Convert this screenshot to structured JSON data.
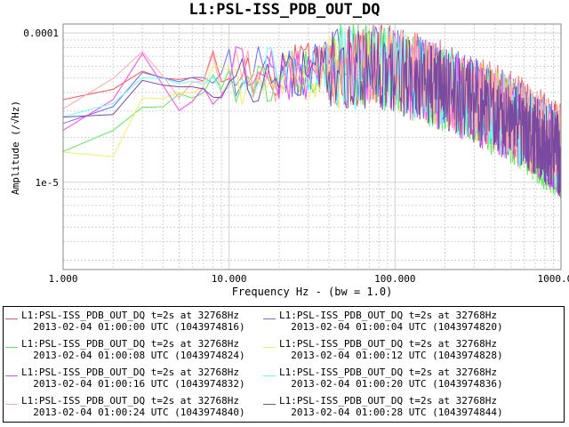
{
  "chart_data": {
    "type": "line",
    "title": "L1:PSL-ISS_PDB_OUT_DQ",
    "xlabel": "Frequency Hz - (bw = 1.0)",
    "ylabel": "Amplitude  (/√Hz)",
    "x_scale": "log",
    "y_scale": "log",
    "xlim": [
      1,
      1000
    ],
    "ylim": [
      2.6e-06,
      0.000115
    ],
    "x_ticks": [
      1,
      10,
      100,
      1000
    ],
    "x_tick_labels": [
      "1.000",
      "10.000",
      "100.000",
      "1000.000"
    ],
    "y_ticks": [
      1e-05,
      0.0001
    ],
    "y_tick_labels": [
      "1e-5",
      "0.0001"
    ],
    "grid": true,
    "legend_position": "bottom",
    "series": [
      {
        "name": "L1:PSL-ISS_PDB_OUT_DQ t=2s at 32768Hz",
        "label_line2": "2013-02-04 01:00:00 UTC (1043974816)",
        "color": "#ff5555",
        "x": [
          1,
          2,
          3,
          5,
          10,
          20,
          50,
          100,
          200,
          500,
          1000
        ],
        "values": [
          3.3e-05,
          4.2e-05,
          5.5e-05,
          4.8e-05,
          5.2e-05,
          5.6e-05,
          6.2e-05,
          6e-05,
          4.6e-05,
          3e-05,
          1.8e-05
        ]
      },
      {
        "name": "L1:PSL-ISS_PDB_OUT_DQ t=2s at 32768Hz",
        "label_line2": "2013-02-04 01:00:04 UTC (1043974820)",
        "color": "#6b6bff",
        "x": [
          1,
          2,
          3,
          5,
          10,
          20,
          50,
          100,
          200,
          500,
          1000
        ],
        "values": [
          2.6e-05,
          3.5e-05,
          5.6e-05,
          4.5e-05,
          5.8e-05,
          5.4e-05,
          6e-05,
          5.8e-05,
          4.4e-05,
          2.8e-05,
          1.6e-05
        ]
      },
      {
        "name": "L1:PSL-ISS_PDB_OUT_DQ t=2s at 32768Hz",
        "label_line2": "2013-02-04 01:00:08 UTC (1043974824)",
        "color": "#55ee55",
        "x": [
          1,
          2,
          3,
          5,
          10,
          20,
          50,
          100,
          200,
          500,
          1000
        ],
        "values": [
          1.6e-05,
          2.2e-05,
          3.4e-05,
          3.6e-05,
          5e-05,
          5.2e-05,
          6.4e-05,
          5.5e-05,
          4e-05,
          2.5e-05,
          1.4e-05
        ]
      },
      {
        "name": "L1:PSL-ISS_PDB_OUT_DQ t=2s at 32768Hz",
        "label_line2": "2013-02-04 01:00:12 UTC (1043974828)",
        "color": "#f0f060",
        "x": [
          1,
          2,
          3,
          5,
          10,
          20,
          50,
          100,
          200,
          500,
          1000
        ],
        "values": [
          1.5e-05,
          1.6e-05,
          3.4e-05,
          4.2e-05,
          4.6e-05,
          5e-05,
          5.8e-05,
          5.6e-05,
          4.2e-05,
          2.7e-05,
          1.5e-05
        ]
      },
      {
        "name": "L1:PSL-ISS_PDB_OUT_DQ t=2s at 32768Hz",
        "label_line2": "2013-02-04 01:00:16 UTC (1043974832)",
        "color": "#ff44ff",
        "x": [
          1,
          2,
          3,
          5,
          10,
          20,
          50,
          100,
          200,
          500,
          1000
        ],
        "values": [
          2.4e-05,
          3.5e-05,
          7e-05,
          3e-05,
          5.4e-05,
          5.2e-05,
          5.8e-05,
          5.4e-05,
          4.1e-05,
          2.6e-05,
          1.5e-05
        ]
      },
      {
        "name": "L1:PSL-ISS_PDB_OUT_DQ t=2s at 32768Hz",
        "label_line2": "2013-02-04 01:00:20 UTC (1043974836)",
        "color": "#66ffff",
        "x": [
          1,
          2,
          3,
          5,
          10,
          20,
          50,
          100,
          200,
          500,
          1000
        ],
        "values": [
          2.8e-05,
          3.6e-05,
          5e-05,
          4.4e-05,
          5.5e-05,
          5.3e-05,
          6e-05,
          5.6e-05,
          4.3e-05,
          2.7e-05,
          1.6e-05
        ]
      },
      {
        "name": "L1:PSL-ISS_PDB_OUT_DQ t=2s at 32768Hz",
        "label_line2": "2013-02-04 01:00:24 UTC (1043974840)",
        "color": "#ffaaaa",
        "x": [
          1,
          2,
          3,
          5,
          10,
          20,
          50,
          100,
          200,
          500,
          1000
        ],
        "values": [
          3e-05,
          4.8e-05,
          7.8e-05,
          4e-05,
          5.6e-05,
          5e-05,
          6.2e-05,
          5.7e-05,
          4.4e-05,
          2.8e-05,
          1.7e-05
        ]
      },
      {
        "name": "L1:PSL-ISS_PDB_OUT_DQ t=2s at 32768Hz",
        "label_line2": "2013-02-04 01:00:28 UTC (1043974844)",
        "color": "#7a4aa0",
        "x": [
          1,
          2,
          3,
          5,
          10,
          20,
          50,
          100,
          200,
          500,
          1000
        ],
        "values": [
          2.5e-05,
          3e-05,
          5.2e-05,
          4e-05,
          5e-05,
          5.4e-05,
          6e-05,
          5.5e-05,
          4.2e-05,
          2.6e-05,
          1.5e-05
        ]
      }
    ]
  }
}
